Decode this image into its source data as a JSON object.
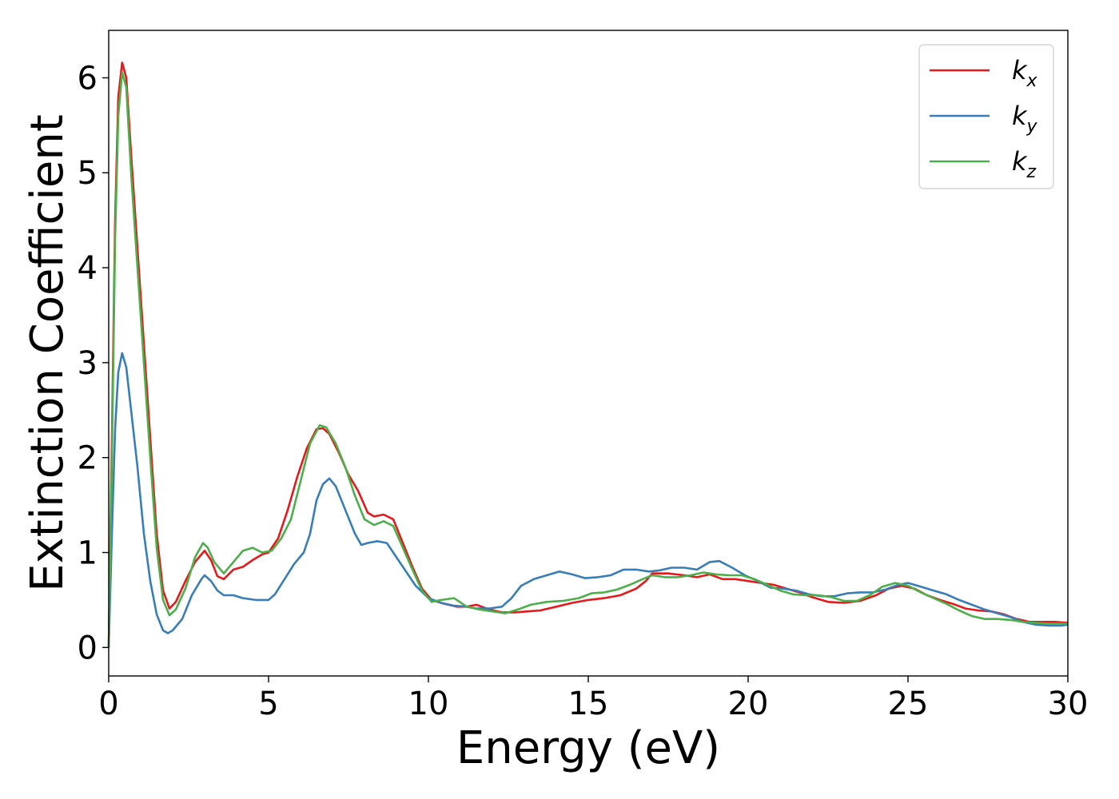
{
  "chart_data": {
    "type": "line",
    "title": "",
    "xlabel": "Energy (eV)",
    "ylabel": "Extinction Coefficient",
    "xlim": [
      0,
      30
    ],
    "ylim": [
      -0.3,
      6.5
    ],
    "x_ticks": [
      0,
      5,
      10,
      15,
      20,
      25,
      30
    ],
    "y_ticks": [
      0,
      1,
      2,
      3,
      4,
      5,
      6
    ],
    "grid": false,
    "legend": {
      "placement": "top-right"
    },
    "series": [
      {
        "name": "k_x",
        "label_base": "k",
        "label_sub": "x",
        "color": "#e41a1c",
        "points": [
          [
            0,
            0
          ],
          [
            0.1,
            2.2
          ],
          [
            0.2,
            4.5
          ],
          [
            0.3,
            5.8
          ],
          [
            0.42,
            6.16
          ],
          [
            0.55,
            6.0
          ],
          [
            0.7,
            5.2
          ],
          [
            0.9,
            4.2
          ],
          [
            1.1,
            3.2
          ],
          [
            1.3,
            2.2
          ],
          [
            1.5,
            1.2
          ],
          [
            1.7,
            0.6
          ],
          [
            1.9,
            0.41
          ],
          [
            2.1,
            0.48
          ],
          [
            2.4,
            0.7
          ],
          [
            2.7,
            0.9
          ],
          [
            3.0,
            1.02
          ],
          [
            3.2,
            0.92
          ],
          [
            3.4,
            0.75
          ],
          [
            3.6,
            0.72
          ],
          [
            3.9,
            0.82
          ],
          [
            4.2,
            0.85
          ],
          [
            4.5,
            0.92
          ],
          [
            4.8,
            0.98
          ],
          [
            5.0,
            1.0
          ],
          [
            5.3,
            1.15
          ],
          [
            5.6,
            1.45
          ],
          [
            5.9,
            1.8
          ],
          [
            6.2,
            2.1
          ],
          [
            6.5,
            2.3
          ],
          [
            6.7,
            2.31
          ],
          [
            6.9,
            2.25
          ],
          [
            7.2,
            2.05
          ],
          [
            7.5,
            1.82
          ],
          [
            7.8,
            1.65
          ],
          [
            8.1,
            1.42
          ],
          [
            8.3,
            1.38
          ],
          [
            8.6,
            1.4
          ],
          [
            8.9,
            1.35
          ],
          [
            9.2,
            1.1
          ],
          [
            9.5,
            0.85
          ],
          [
            9.8,
            0.62
          ],
          [
            10.1,
            0.5
          ],
          [
            10.5,
            0.46
          ],
          [
            10.9,
            0.43
          ],
          [
            11.2,
            0.43
          ],
          [
            11.5,
            0.45
          ],
          [
            11.9,
            0.4
          ],
          [
            12.3,
            0.37
          ],
          [
            12.7,
            0.37
          ],
          [
            13.1,
            0.38
          ],
          [
            13.5,
            0.39
          ],
          [
            14.0,
            0.43
          ],
          [
            14.5,
            0.47
          ],
          [
            15.0,
            0.5
          ],
          [
            15.5,
            0.52
          ],
          [
            16.0,
            0.55
          ],
          [
            16.5,
            0.62
          ],
          [
            16.8,
            0.7
          ],
          [
            17.0,
            0.78
          ],
          [
            17.5,
            0.78
          ],
          [
            18.0,
            0.76
          ],
          [
            18.4,
            0.74
          ],
          [
            18.8,
            0.77
          ],
          [
            19.2,
            0.72
          ],
          [
            19.6,
            0.72
          ],
          [
            20.0,
            0.7
          ],
          [
            20.4,
            0.68
          ],
          [
            20.8,
            0.66
          ],
          [
            21.2,
            0.62
          ],
          [
            21.6,
            0.58
          ],
          [
            22.0,
            0.53
          ],
          [
            22.5,
            0.48
          ],
          [
            23.0,
            0.47
          ],
          [
            23.5,
            0.49
          ],
          [
            24.0,
            0.55
          ],
          [
            24.4,
            0.62
          ],
          [
            24.8,
            0.65
          ],
          [
            25.2,
            0.62
          ],
          [
            25.6,
            0.55
          ],
          [
            26.0,
            0.5
          ],
          [
            26.4,
            0.46
          ],
          [
            26.8,
            0.41
          ],
          [
            27.2,
            0.39
          ],
          [
            27.6,
            0.38
          ],
          [
            28.0,
            0.35
          ],
          [
            28.4,
            0.3
          ],
          [
            28.8,
            0.27
          ],
          [
            29.2,
            0.27
          ],
          [
            29.6,
            0.27
          ],
          [
            30,
            0.26
          ]
        ]
      },
      {
        "name": "k_y",
        "label_base": "k",
        "label_sub": "y",
        "color": "#377eb8",
        "points": [
          [
            0,
            0
          ],
          [
            0.1,
            1.2
          ],
          [
            0.2,
            2.3
          ],
          [
            0.3,
            2.9
          ],
          [
            0.42,
            3.1
          ],
          [
            0.55,
            2.95
          ],
          [
            0.7,
            2.5
          ],
          [
            0.9,
            1.9
          ],
          [
            1.1,
            1.2
          ],
          [
            1.3,
            0.7
          ],
          [
            1.5,
            0.35
          ],
          [
            1.7,
            0.18
          ],
          [
            1.85,
            0.15
          ],
          [
            2.0,
            0.18
          ],
          [
            2.3,
            0.3
          ],
          [
            2.6,
            0.55
          ],
          [
            2.9,
            0.72
          ],
          [
            3.0,
            0.76
          ],
          [
            3.2,
            0.7
          ],
          [
            3.4,
            0.6
          ],
          [
            3.6,
            0.55
          ],
          [
            3.9,
            0.55
          ],
          [
            4.2,
            0.52
          ],
          [
            4.6,
            0.5
          ],
          [
            5.0,
            0.5
          ],
          [
            5.2,
            0.56
          ],
          [
            5.5,
            0.72
          ],
          [
            5.8,
            0.88
          ],
          [
            6.1,
            1.0
          ],
          [
            6.3,
            1.2
          ],
          [
            6.5,
            1.55
          ],
          [
            6.7,
            1.72
          ],
          [
            6.9,
            1.78
          ],
          [
            7.1,
            1.7
          ],
          [
            7.4,
            1.45
          ],
          [
            7.7,
            1.2
          ],
          [
            7.9,
            1.08
          ],
          [
            8.1,
            1.1
          ],
          [
            8.4,
            1.12
          ],
          [
            8.7,
            1.1
          ],
          [
            9.0,
            0.95
          ],
          [
            9.3,
            0.8
          ],
          [
            9.6,
            0.65
          ],
          [
            10.0,
            0.52
          ],
          [
            10.4,
            0.47
          ],
          [
            10.8,
            0.44
          ],
          [
            11.2,
            0.43
          ],
          [
            11.5,
            0.41
          ],
          [
            11.9,
            0.41
          ],
          [
            12.3,
            0.43
          ],
          [
            12.6,
            0.52
          ],
          [
            12.9,
            0.65
          ],
          [
            13.3,
            0.72
          ],
          [
            13.7,
            0.76
          ],
          [
            14.1,
            0.8
          ],
          [
            14.5,
            0.77
          ],
          [
            14.9,
            0.73
          ],
          [
            15.3,
            0.74
          ],
          [
            15.7,
            0.76
          ],
          [
            16.1,
            0.82
          ],
          [
            16.5,
            0.82
          ],
          [
            16.9,
            0.8
          ],
          [
            17.2,
            0.81
          ],
          [
            17.6,
            0.84
          ],
          [
            18.0,
            0.84
          ],
          [
            18.4,
            0.82
          ],
          [
            18.8,
            0.9
          ],
          [
            19.1,
            0.91
          ],
          [
            19.5,
            0.84
          ],
          [
            19.9,
            0.76
          ],
          [
            20.3,
            0.7
          ],
          [
            20.7,
            0.63
          ],
          [
            21.1,
            0.62
          ],
          [
            21.5,
            0.6
          ],
          [
            21.9,
            0.56
          ],
          [
            22.3,
            0.54
          ],
          [
            22.7,
            0.54
          ],
          [
            23.1,
            0.57
          ],
          [
            23.5,
            0.58
          ],
          [
            23.9,
            0.58
          ],
          [
            24.3,
            0.61
          ],
          [
            24.7,
            0.66
          ],
          [
            25.0,
            0.68
          ],
          [
            25.4,
            0.64
          ],
          [
            25.8,
            0.6
          ],
          [
            26.2,
            0.56
          ],
          [
            26.6,
            0.5
          ],
          [
            27.0,
            0.45
          ],
          [
            27.4,
            0.4
          ],
          [
            27.8,
            0.36
          ],
          [
            28.2,
            0.32
          ],
          [
            28.6,
            0.27
          ],
          [
            29.0,
            0.24
          ],
          [
            29.4,
            0.23
          ],
          [
            29.8,
            0.23
          ],
          [
            30,
            0.24
          ]
        ]
      },
      {
        "name": "k_z",
        "label_base": "k",
        "label_sub": "z",
        "color": "#4daf4a",
        "points": [
          [
            0,
            0
          ],
          [
            0.1,
            2.0
          ],
          [
            0.2,
            4.3
          ],
          [
            0.3,
            5.6
          ],
          [
            0.42,
            6.06
          ],
          [
            0.55,
            5.9
          ],
          [
            0.7,
            5.0
          ],
          [
            0.9,
            4.0
          ],
          [
            1.1,
            3.0
          ],
          [
            1.3,
            2.0
          ],
          [
            1.5,
            1.05
          ],
          [
            1.7,
            0.5
          ],
          [
            1.9,
            0.34
          ],
          [
            2.1,
            0.4
          ],
          [
            2.4,
            0.62
          ],
          [
            2.7,
            0.95
          ],
          [
            2.95,
            1.1
          ],
          [
            3.1,
            1.05
          ],
          [
            3.3,
            0.9
          ],
          [
            3.6,
            0.78
          ],
          [
            3.9,
            0.9
          ],
          [
            4.2,
            1.02
          ],
          [
            4.5,
            1.05
          ],
          [
            4.8,
            1.0
          ],
          [
            5.1,
            1.02
          ],
          [
            5.4,
            1.15
          ],
          [
            5.7,
            1.35
          ],
          [
            6.0,
            1.75
          ],
          [
            6.3,
            2.15
          ],
          [
            6.6,
            2.34
          ],
          [
            6.8,
            2.32
          ],
          [
            7.1,
            2.15
          ],
          [
            7.4,
            1.9
          ],
          [
            7.7,
            1.6
          ],
          [
            8.0,
            1.35
          ],
          [
            8.3,
            1.29
          ],
          [
            8.6,
            1.33
          ],
          [
            8.9,
            1.28
          ],
          [
            9.2,
            1.05
          ],
          [
            9.5,
            0.82
          ],
          [
            9.8,
            0.6
          ],
          [
            10.1,
            0.48
          ],
          [
            10.4,
            0.5
          ],
          [
            10.8,
            0.52
          ],
          [
            11.2,
            0.43
          ],
          [
            11.6,
            0.4
          ],
          [
            12.0,
            0.38
          ],
          [
            12.4,
            0.36
          ],
          [
            12.8,
            0.4
          ],
          [
            13.2,
            0.45
          ],
          [
            13.7,
            0.48
          ],
          [
            14.2,
            0.49
          ],
          [
            14.7,
            0.52
          ],
          [
            15.1,
            0.57
          ],
          [
            15.5,
            0.58
          ],
          [
            15.9,
            0.61
          ],
          [
            16.3,
            0.66
          ],
          [
            16.7,
            0.72
          ],
          [
            17.0,
            0.76
          ],
          [
            17.4,
            0.74
          ],
          [
            17.8,
            0.74
          ],
          [
            18.2,
            0.76
          ],
          [
            18.6,
            0.79
          ],
          [
            19.0,
            0.77
          ],
          [
            19.4,
            0.76
          ],
          [
            19.8,
            0.76
          ],
          [
            20.2,
            0.72
          ],
          [
            20.6,
            0.66
          ],
          [
            21.0,
            0.6
          ],
          [
            21.4,
            0.56
          ],
          [
            21.8,
            0.55
          ],
          [
            22.2,
            0.55
          ],
          [
            22.6,
            0.53
          ],
          [
            23.0,
            0.49
          ],
          [
            23.4,
            0.49
          ],
          [
            23.8,
            0.55
          ],
          [
            24.2,
            0.64
          ],
          [
            24.6,
            0.68
          ],
          [
            25.0,
            0.65
          ],
          [
            25.4,
            0.58
          ],
          [
            25.8,
            0.52
          ],
          [
            26.2,
            0.46
          ],
          [
            26.6,
            0.39
          ],
          [
            27.0,
            0.33
          ],
          [
            27.4,
            0.3
          ],
          [
            27.8,
            0.3
          ],
          [
            28.2,
            0.29
          ],
          [
            28.6,
            0.27
          ],
          [
            29.0,
            0.26
          ],
          [
            29.4,
            0.25
          ],
          [
            29.8,
            0.25
          ],
          [
            30,
            0.25
          ]
        ]
      }
    ]
  }
}
